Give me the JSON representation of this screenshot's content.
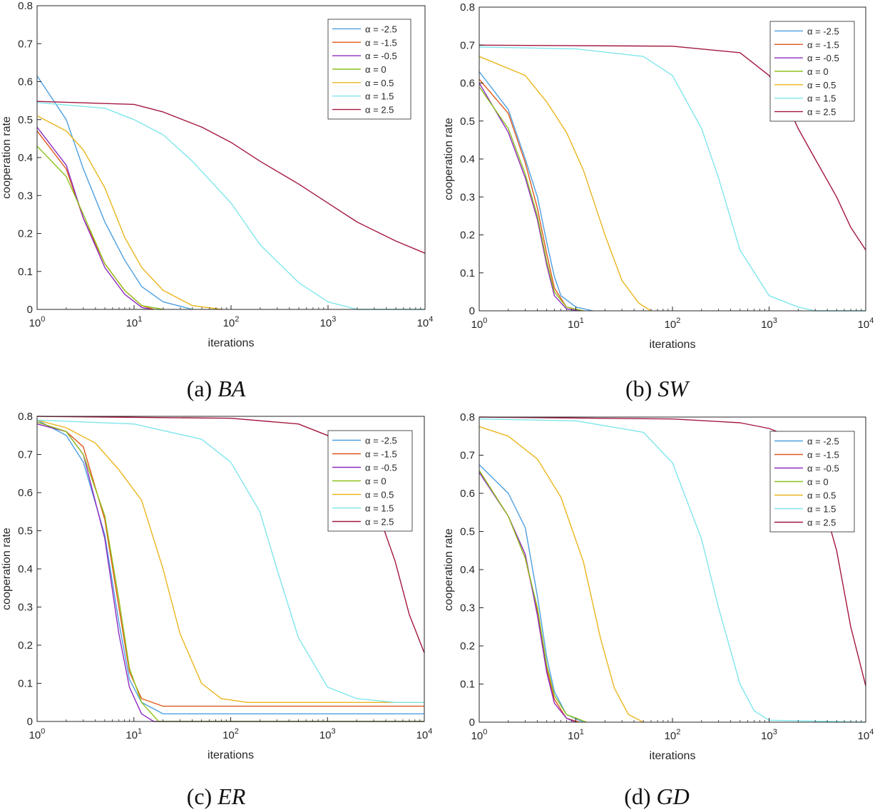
{
  "chart_data": [
    {
      "type": "line",
      "panel": "a",
      "caption_prefix": "(a)",
      "caption_name": "BA",
      "xlabel": "iterations",
      "ylabel": "cooperation rate",
      "xscale": "log",
      "xlim": [
        1,
        10000
      ],
      "ylim": [
        0,
        0.8
      ],
      "xticks": [
        1,
        10,
        100,
        1000,
        10000
      ],
      "xtick_labels": [
        {
          "base": "10",
          "exp": "0"
        },
        {
          "base": "10",
          "exp": "1"
        },
        {
          "base": "10",
          "exp": "2"
        },
        {
          "base": "10",
          "exp": "3"
        },
        {
          "base": "10",
          "exp": "4"
        }
      ],
      "yticks": [
        0,
        0.1,
        0.2,
        0.3,
        0.4,
        0.5,
        0.6,
        0.7,
        0.8
      ],
      "ytick_labels": [
        "0",
        "0.1",
        "0.2",
        "0.3",
        "0.4",
        "0.5",
        "0.6",
        "0.7",
        "0.8"
      ],
      "grid": false,
      "legend_position": "top-right",
      "series": [
        {
          "name": "α = -2.5",
          "color": "#4d9fe0",
          "x": [
            1,
            2,
            3,
            5,
            8,
            12,
            20,
            40
          ],
          "y": [
            0.615,
            0.5,
            0.37,
            0.23,
            0.13,
            0.06,
            0.02,
            0.0
          ]
        },
        {
          "name": "α = -1.5",
          "color": "#e0561a",
          "x": [
            1,
            2,
            3,
            5,
            8,
            12,
            16
          ],
          "y": [
            0.47,
            0.37,
            0.24,
            0.12,
            0.05,
            0.01,
            0.0
          ]
        },
        {
          "name": "α = -0.5",
          "color": "#8e2bbf",
          "x": [
            1,
            2,
            3,
            5,
            8,
            12,
            15
          ],
          "y": [
            0.48,
            0.38,
            0.24,
            0.11,
            0.04,
            0.005,
            0.0
          ]
        },
        {
          "name": "α = 0",
          "color": "#8ec21b",
          "x": [
            1,
            2,
            3,
            5,
            8,
            12,
            20
          ],
          "y": [
            0.43,
            0.35,
            0.25,
            0.12,
            0.05,
            0.01,
            0.0
          ]
        },
        {
          "name": "α = 0.5",
          "color": "#eab51c",
          "x": [
            1,
            2,
            3,
            5,
            8,
            12,
            20,
            40,
            80
          ],
          "y": [
            0.51,
            0.47,
            0.42,
            0.32,
            0.19,
            0.11,
            0.05,
            0.01,
            0.0
          ]
        },
        {
          "name": "α = 1.5",
          "color": "#7fe6ec",
          "x": [
            1,
            5,
            10,
            20,
            40,
            100,
            200,
            500,
            1000,
            2000,
            10000
          ],
          "y": [
            0.545,
            0.53,
            0.5,
            0.46,
            0.39,
            0.28,
            0.17,
            0.07,
            0.02,
            0.0,
            0.0
          ]
        },
        {
          "name": "α = 2.5",
          "color": "#a3173e",
          "x": [
            1,
            10,
            20,
            50,
            100,
            200,
            500,
            1000,
            2000,
            5000,
            10000
          ],
          "y": [
            0.548,
            0.54,
            0.52,
            0.48,
            0.44,
            0.39,
            0.33,
            0.28,
            0.23,
            0.18,
            0.148
          ]
        }
      ]
    },
    {
      "type": "line",
      "panel": "b",
      "caption_prefix": "(b)",
      "caption_name": "SW",
      "xlabel": "iterations",
      "ylabel": "cooperation rate",
      "xscale": "log",
      "xlim": [
        1,
        10000
      ],
      "ylim": [
        0,
        0.8
      ],
      "xticks": [
        1,
        10,
        100,
        1000,
        10000
      ],
      "xtick_labels": [
        {
          "base": "10",
          "exp": "0"
        },
        {
          "base": "10",
          "exp": "1"
        },
        {
          "base": "10",
          "exp": "2"
        },
        {
          "base": "10",
          "exp": "3"
        },
        {
          "base": "10",
          "exp": "4"
        }
      ],
      "yticks": [
        0,
        0.1,
        0.2,
        0.3,
        0.4,
        0.5,
        0.6,
        0.7,
        0.8
      ],
      "ytick_labels": [
        "0",
        "0.1",
        "0.2",
        "0.3",
        "0.4",
        "0.5",
        "0.6",
        "0.7",
        "0.8"
      ],
      "grid": false,
      "legend_position": "top-right",
      "series": [
        {
          "name": "α = -2.5",
          "color": "#4d9fe0",
          "x": [
            1,
            2,
            3,
            4,
            5,
            6,
            7,
            10,
            15
          ],
          "y": [
            0.63,
            0.53,
            0.4,
            0.3,
            0.18,
            0.09,
            0.04,
            0.01,
            0.0
          ]
        },
        {
          "name": "α = -1.5",
          "color": "#e0561a",
          "x": [
            1,
            2,
            3,
            4,
            5,
            6,
            8,
            12
          ],
          "y": [
            0.61,
            0.52,
            0.39,
            0.27,
            0.15,
            0.06,
            0.01,
            0.0
          ]
        },
        {
          "name": "α = -0.5",
          "color": "#8e2bbf",
          "x": [
            1,
            2,
            3,
            4,
            5,
            6,
            8,
            11
          ],
          "y": [
            0.6,
            0.47,
            0.35,
            0.24,
            0.12,
            0.04,
            0.005,
            0.0
          ]
        },
        {
          "name": "α = 0",
          "color": "#8ec21b",
          "x": [
            1,
            2,
            3,
            4,
            5,
            6,
            8,
            12
          ],
          "y": [
            0.59,
            0.48,
            0.36,
            0.25,
            0.13,
            0.05,
            0.01,
            0.0
          ]
        },
        {
          "name": "α = 0.5",
          "color": "#eab51c",
          "x": [
            1,
            3,
            5,
            8,
            12,
            20,
            30,
            45,
            60
          ],
          "y": [
            0.67,
            0.62,
            0.55,
            0.47,
            0.37,
            0.2,
            0.08,
            0.02,
            0.0
          ]
        },
        {
          "name": "α = 1.5",
          "color": "#7fe6ec",
          "x": [
            1,
            10,
            50,
            100,
            200,
            300,
            500,
            1000,
            2000,
            3000,
            10000
          ],
          "y": [
            0.695,
            0.69,
            0.67,
            0.62,
            0.48,
            0.35,
            0.16,
            0.04,
            0.01,
            0.0,
            0.0
          ]
        },
        {
          "name": "α = 2.5",
          "color": "#a3173e",
          "x": [
            1,
            100,
            500,
            1000,
            1500,
            2000,
            3000,
            5000,
            7000,
            10000
          ],
          "y": [
            0.7,
            0.697,
            0.68,
            0.62,
            0.55,
            0.48,
            0.4,
            0.3,
            0.22,
            0.16
          ]
        }
      ]
    },
    {
      "type": "line",
      "panel": "c",
      "caption_prefix": "(c)",
      "caption_name": "ER",
      "xlabel": "iterations",
      "ylabel": "cooperation rate",
      "xscale": "log",
      "xlim": [
        1,
        10000
      ],
      "ylim": [
        0,
        0.8
      ],
      "xticks": [
        1,
        10,
        100,
        1000,
        10000
      ],
      "xtick_labels": [
        {
          "base": "10",
          "exp": "0"
        },
        {
          "base": "10",
          "exp": "1"
        },
        {
          "base": "10",
          "exp": "2"
        },
        {
          "base": "10",
          "exp": "3"
        },
        {
          "base": "10",
          "exp": "4"
        }
      ],
      "yticks": [
        0,
        0.1,
        0.2,
        0.3,
        0.4,
        0.5,
        0.6,
        0.7,
        0.8
      ],
      "ytick_labels": [
        "0",
        "0.1",
        "0.2",
        "0.3",
        "0.4",
        "0.5",
        "0.6",
        "0.7",
        "0.8"
      ],
      "grid": false,
      "legend_position": "top-right",
      "series": [
        {
          "name": "α = -2.5",
          "color": "#4d9fe0",
          "x": [
            1,
            2,
            3,
            5,
            7,
            9,
            12,
            20,
            10000
          ],
          "y": [
            0.79,
            0.75,
            0.68,
            0.49,
            0.26,
            0.11,
            0.05,
            0.02,
            0.02
          ]
        },
        {
          "name": "α = -1.5",
          "color": "#e0561a",
          "x": [
            1,
            2,
            3,
            5,
            7,
            9,
            12,
            20,
            10000
          ],
          "y": [
            0.785,
            0.76,
            0.72,
            0.53,
            0.3,
            0.13,
            0.06,
            0.04,
            0.04
          ]
        },
        {
          "name": "α = -0.5",
          "color": "#8e2bbf",
          "x": [
            1,
            2,
            3,
            5,
            7,
            9,
            12,
            16,
            10000
          ],
          "y": [
            0.78,
            0.76,
            0.7,
            0.48,
            0.23,
            0.09,
            0.02,
            0.0,
            0.0
          ]
        },
        {
          "name": "α = 0",
          "color": "#8ec21b",
          "x": [
            1,
            2,
            3,
            5,
            7,
            9,
            12,
            18,
            10000
          ],
          "y": [
            0.785,
            0.76,
            0.7,
            0.54,
            0.32,
            0.14,
            0.05,
            0.0,
            0.0
          ]
        },
        {
          "name": "α = 0.5",
          "color": "#eab51c",
          "x": [
            1,
            2,
            4,
            7,
            12,
            20,
            30,
            50,
            80,
            150,
            10000
          ],
          "y": [
            0.79,
            0.77,
            0.73,
            0.66,
            0.58,
            0.4,
            0.23,
            0.1,
            0.06,
            0.05,
            0.05
          ]
        },
        {
          "name": "α = 1.5",
          "color": "#7fe6ec",
          "x": [
            1,
            10,
            50,
            100,
            200,
            300,
            500,
            1000,
            2000,
            5000,
            10000
          ],
          "y": [
            0.79,
            0.78,
            0.74,
            0.68,
            0.55,
            0.4,
            0.22,
            0.09,
            0.06,
            0.05,
            0.05
          ]
        },
        {
          "name": "α = 2.5",
          "color": "#a3173e",
          "x": [
            1,
            100,
            500,
            1000,
            2000,
            3000,
            5000,
            7000,
            10000
          ],
          "y": [
            0.8,
            0.795,
            0.78,
            0.75,
            0.68,
            0.58,
            0.42,
            0.28,
            0.18
          ]
        }
      ]
    },
    {
      "type": "line",
      "panel": "d",
      "caption_prefix": "(d)",
      "caption_name": "GD",
      "xlabel": "iterations",
      "ylabel": "cooperation rate",
      "xscale": "log",
      "xlim": [
        1,
        10000
      ],
      "ylim": [
        0,
        0.8
      ],
      "xticks": [
        1,
        10,
        100,
        1000,
        10000
      ],
      "xtick_labels": [
        {
          "base": "10",
          "exp": "0"
        },
        {
          "base": "10",
          "exp": "1"
        },
        {
          "base": "10",
          "exp": "2"
        },
        {
          "base": "10",
          "exp": "3"
        },
        {
          "base": "10",
          "exp": "4"
        }
      ],
      "yticks": [
        0,
        0.1,
        0.2,
        0.3,
        0.4,
        0.5,
        0.6,
        0.7,
        0.8
      ],
      "ytick_labels": [
        "0",
        "0.1",
        "0.2",
        "0.3",
        "0.4",
        "0.5",
        "0.6",
        "0.7",
        "0.8"
      ],
      "grid": false,
      "legend_position": "top-right",
      "series": [
        {
          "name": "α = -2.5",
          "color": "#4d9fe0",
          "x": [
            1,
            2,
            3,
            4,
            5,
            6,
            8,
            12
          ],
          "y": [
            0.675,
            0.6,
            0.51,
            0.33,
            0.17,
            0.08,
            0.02,
            0.0
          ]
        },
        {
          "name": "α = -1.5",
          "color": "#e0561a",
          "x": [
            1,
            2,
            3,
            4,
            5,
            6,
            8,
            11
          ],
          "y": [
            0.66,
            0.54,
            0.43,
            0.29,
            0.14,
            0.06,
            0.01,
            0.0
          ]
        },
        {
          "name": "α = -0.5",
          "color": "#8e2bbf",
          "x": [
            1,
            2,
            3,
            4,
            5,
            6,
            8,
            10
          ],
          "y": [
            0.655,
            0.54,
            0.44,
            0.28,
            0.13,
            0.05,
            0.01,
            0.0
          ]
        },
        {
          "name": "α = 0",
          "color": "#8ec21b",
          "x": [
            1,
            2,
            3,
            4,
            5,
            6,
            8,
            13
          ],
          "y": [
            0.66,
            0.54,
            0.43,
            0.3,
            0.15,
            0.07,
            0.02,
            0.0
          ]
        },
        {
          "name": "α = 0.5",
          "color": "#eab51c",
          "x": [
            1,
            2,
            4,
            7,
            12,
            18,
            25,
            35,
            50
          ],
          "y": [
            0.775,
            0.75,
            0.69,
            0.59,
            0.42,
            0.22,
            0.09,
            0.02,
            0.0
          ]
        },
        {
          "name": "α = 1.5",
          "color": "#7fe6ec",
          "x": [
            1,
            10,
            50,
            100,
            200,
            300,
            500,
            700,
            1000,
            10000
          ],
          "y": [
            0.795,
            0.79,
            0.76,
            0.68,
            0.48,
            0.3,
            0.1,
            0.03,
            0.005,
            0.0
          ]
        },
        {
          "name": "α = 2.5",
          "color": "#a3173e",
          "x": [
            1,
            100,
            500,
            1000,
            2000,
            3000,
            5000,
            7000,
            10000
          ],
          "y": [
            0.8,
            0.795,
            0.785,
            0.77,
            0.74,
            0.65,
            0.45,
            0.25,
            0.095
          ]
        }
      ]
    }
  ]
}
